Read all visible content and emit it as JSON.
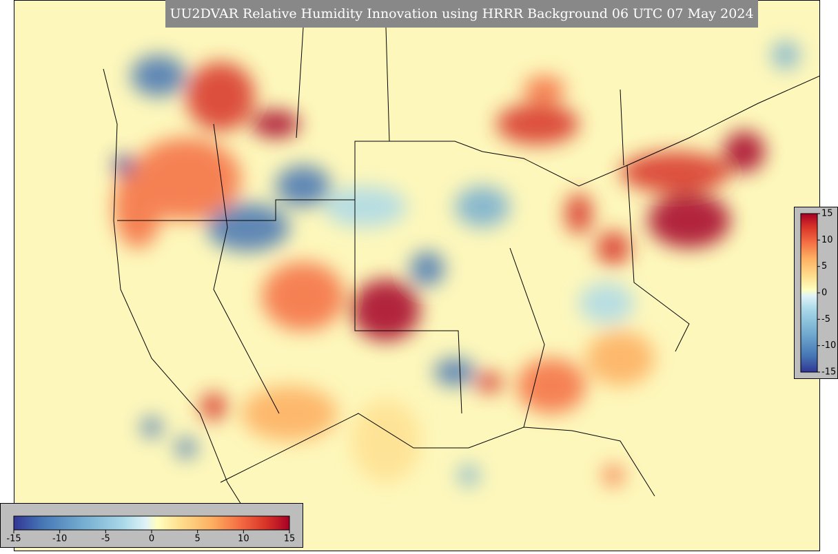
{
  "title": "UU2DVAR Relative Humidity Innovation using HRRR Background 06 UTC 07 May 2024",
  "horizontal_colorbar": {
    "lim": [
      -15,
      15
    ],
    "ticks": [
      -15,
      -10,
      -5,
      0,
      5,
      10,
      15
    ]
  },
  "vertical_colorbar": {
    "lim": [
      -15,
      15
    ],
    "ticks": [
      15,
      10,
      5,
      0,
      -5,
      -10,
      -15
    ]
  }
}
